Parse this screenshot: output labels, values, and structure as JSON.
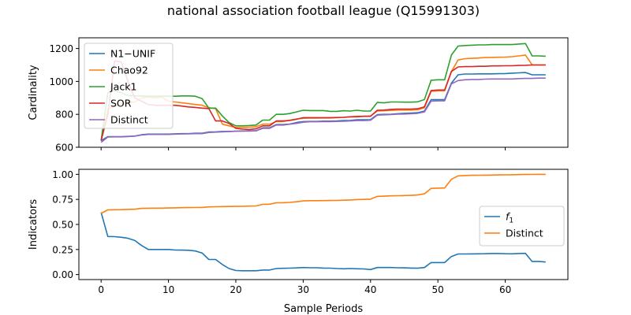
{
  "figure": {
    "title": "national association football league (Q15991303)"
  },
  "chart_data": [
    {
      "type": "line",
      "ylabel": "Cardinality",
      "xlabel": "",
      "xlim": [
        -3.3,
        69.3
      ],
      "ylim": [
        600,
        1265
      ],
      "xticks": [
        0,
        10,
        20,
        30,
        40,
        50,
        60
      ],
      "yticks": [
        600,
        800,
        1000,
        1200
      ],
      "grid": false,
      "legend_position": "upper-left",
      "x": [
        0,
        1,
        2,
        3,
        4,
        5,
        6,
        7,
        8,
        9,
        10,
        11,
        12,
        13,
        14,
        15,
        16,
        17,
        18,
        19,
        20,
        21,
        22,
        23,
        24,
        25,
        26,
        27,
        28,
        29,
        30,
        31,
        32,
        33,
        34,
        35,
        36,
        37,
        38,
        39,
        40,
        41,
        42,
        43,
        44,
        45,
        46,
        47,
        48,
        49,
        50,
        51,
        52,
        53,
        54,
        55,
        56,
        57,
        58,
        59,
        60,
        61,
        62,
        63,
        64,
        65,
        66
      ],
      "series": [
        {
          "name": "N1−UNIF",
          "color": "#1f77b4",
          "values": [
            640,
            664,
            664,
            664,
            666,
            668,
            676,
            680,
            680,
            680,
            680,
            682,
            683,
            683,
            685,
            685,
            693,
            694,
            696,
            696,
            698,
            699,
            700,
            700,
            718,
            718,
            738,
            738,
            741,
            750,
            756,
            757,
            757,
            759,
            759,
            760,
            762,
            763,
            767,
            767,
            768,
            798,
            800,
            801,
            804,
            806,
            808,
            810,
            820,
            889,
            889,
            889,
            990,
            1040,
            1045,
            1045,
            1046,
            1046,
            1046,
            1047,
            1048,
            1050,
            1052,
            1054,
            1040,
            1040,
            1040
          ]
        },
        {
          "name": "Chao92",
          "color": "#ff7f0e",
          "values": [
            640,
            830,
            850,
            860,
            870,
            875,
            900,
            905,
            900,
            905,
            880,
            875,
            870,
            865,
            860,
            855,
            840,
            835,
            740,
            730,
            720,
            720,
            722,
            725,
            740,
            740,
            756,
            756,
            764,
            772,
            776,
            777,
            777,
            778,
            778,
            780,
            782,
            785,
            788,
            788,
            790,
            820,
            822,
            824,
            826,
            826,
            826,
            828,
            840,
            940,
            942,
            942,
            1060,
            1130,
            1138,
            1140,
            1142,
            1145,
            1146,
            1147,
            1148,
            1150,
            1155,
            1160,
            1100,
            1100,
            1100
          ]
        },
        {
          "name": "Jack1",
          "color": "#2ca02c",
          "values": [
            640,
            930,
            945,
            930,
            915,
            912,
            912,
            910,
            910,
            910,
            910,
            910,
            912,
            912,
            910,
            895,
            838,
            838,
            790,
            750,
            730,
            730,
            732,
            735,
            765,
            765,
            800,
            800,
            805,
            815,
            825,
            823,
            823,
            823,
            818,
            818,
            822,
            820,
            825,
            820,
            820,
            872,
            870,
            875,
            875,
            874,
            874,
            876,
            890,
            1007,
            1010,
            1010,
            1160,
            1215,
            1218,
            1220,
            1222,
            1222,
            1224,
            1224,
            1224,
            1224,
            1227,
            1230,
            1155,
            1155,
            1153
          ]
        },
        {
          "name": "SOR",
          "color": "#d62728",
          "values": [
            640,
            800,
            1125,
            1118,
            1000,
            900,
            880,
            860,
            855,
            855,
            855,
            855,
            850,
            845,
            842,
            838,
            835,
            760,
            760,
            745,
            715,
            710,
            708,
            712,
            730,
            730,
            760,
            760,
            763,
            770,
            780,
            780,
            780,
            780,
            780,
            781,
            782,
            785,
            785,
            788,
            788,
            825,
            826,
            830,
            832,
            832,
            832,
            834,
            846,
            945,
            948,
            948,
            1060,
            1088,
            1090,
            1090,
            1092,
            1092,
            1094,
            1094,
            1095,
            1095,
            1097,
            1098,
            1100,
            1100,
            1100
          ]
        },
        {
          "name": "Distinct",
          "color": "#9467bd",
          "values": [
            630,
            662,
            663,
            663,
            665,
            668,
            674,
            678,
            678,
            678,
            678,
            680,
            681,
            682,
            683,
            683,
            690,
            692,
            694,
            695,
            697,
            698,
            698,
            700,
            715,
            715,
            735,
            735,
            740,
            745,
            752,
            755,
            755,
            756,
            756,
            757,
            758,
            760,
            762,
            762,
            764,
            795,
            797,
            799,
            801,
            802,
            804,
            806,
            815,
            880,
            882,
            882,
            985,
            1005,
            1010,
            1012,
            1012,
            1014,
            1015,
            1015,
            1015,
            1015,
            1017,
            1018,
            1018,
            1020,
            1020
          ]
        }
      ]
    },
    {
      "type": "line",
      "ylabel": "Indicators",
      "xlabel": "Sample Periods",
      "xlim": [
        -3.3,
        69.3
      ],
      "ylim": [
        -0.05,
        1.05
      ],
      "xticks": [
        0,
        10,
        20,
        30,
        40,
        50,
        60
      ],
      "yticks": [
        0.0,
        0.25,
        0.5,
        0.75,
        1.0
      ],
      "grid": false,
      "legend_position": "right",
      "x": [
        0,
        1,
        2,
        3,
        4,
        5,
        6,
        7,
        8,
        9,
        10,
        11,
        12,
        13,
        14,
        15,
        16,
        17,
        18,
        19,
        20,
        21,
        22,
        23,
        24,
        25,
        26,
        27,
        28,
        29,
        30,
        31,
        32,
        33,
        34,
        35,
        36,
        37,
        38,
        39,
        40,
        41,
        42,
        43,
        44,
        45,
        46,
        47,
        48,
        49,
        50,
        51,
        52,
        53,
        54,
        55,
        56,
        57,
        58,
        59,
        60,
        61,
        62,
        63,
        64,
        65,
        66
      ],
      "series": [
        {
          "name": "f1",
          "name_main": "f",
          "name_sub": "1",
          "color": "#1f77b4",
          "values": [
            0.62,
            0.38,
            0.378,
            0.372,
            0.362,
            0.34,
            0.29,
            0.25,
            0.25,
            0.25,
            0.25,
            0.245,
            0.244,
            0.242,
            0.235,
            0.215,
            0.15,
            0.15,
            0.1,
            0.06,
            0.04,
            0.038,
            0.038,
            0.038,
            0.045,
            0.045,
            0.06,
            0.062,
            0.064,
            0.066,
            0.07,
            0.068,
            0.068,
            0.065,
            0.064,
            0.06,
            0.058,
            0.06,
            0.058,
            0.056,
            0.05,
            0.07,
            0.07,
            0.07,
            0.068,
            0.067,
            0.065,
            0.063,
            0.07,
            0.12,
            0.12,
            0.12,
            0.18,
            0.205,
            0.205,
            0.206,
            0.207,
            0.208,
            0.21,
            0.21,
            0.208,
            0.207,
            0.21,
            0.212,
            0.13,
            0.13,
            0.125
          ]
        },
        {
          "name": "Distinct",
          "color": "#ff7f0e",
          "values": [
            0.61,
            0.645,
            0.647,
            0.648,
            0.65,
            0.652,
            0.66,
            0.662,
            0.663,
            0.663,
            0.664,
            0.666,
            0.667,
            0.668,
            0.669,
            0.67,
            0.675,
            0.677,
            0.678,
            0.679,
            0.68,
            0.681,
            0.683,
            0.685,
            0.7,
            0.702,
            0.716,
            0.717,
            0.72,
            0.726,
            0.735,
            0.737,
            0.737,
            0.738,
            0.739,
            0.74,
            0.742,
            0.744,
            0.748,
            0.75,
            0.752,
            0.78,
            0.782,
            0.785,
            0.787,
            0.788,
            0.79,
            0.794,
            0.806,
            0.86,
            0.862,
            0.864,
            0.95,
            0.985,
            0.988,
            0.99,
            0.991,
            0.992,
            0.993,
            0.994,
            0.995,
            0.996,
            0.997,
            0.998,
            0.999,
            1.0,
            1.0
          ]
        }
      ]
    }
  ]
}
